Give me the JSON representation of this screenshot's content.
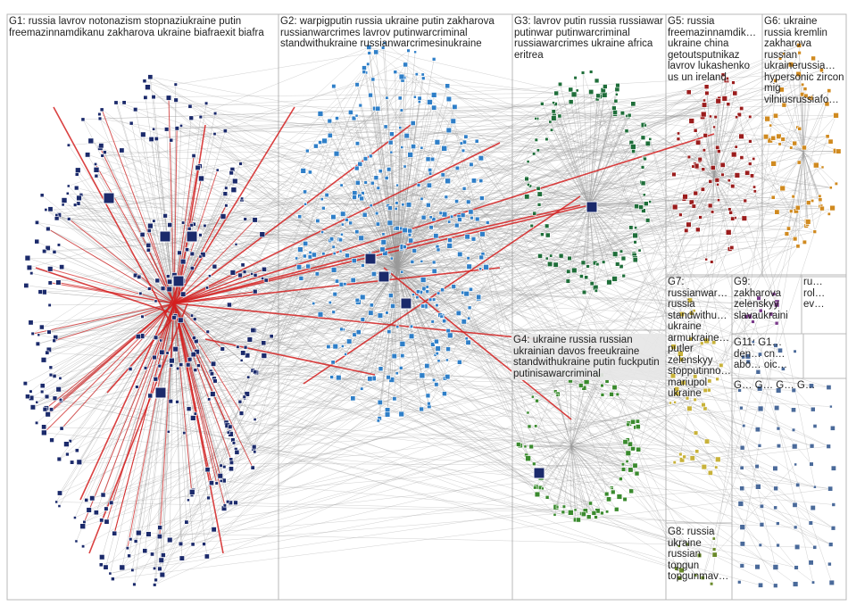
{
  "groups": [
    {
      "id": "G1",
      "label": "G1: russia lavrov notonazism stopnaziukraine putin freemazinnamdikanu zakharova ukraine biafraexit biafra",
      "color": "#1b2a6b"
    },
    {
      "id": "G2",
      "label": "G2: warpigputin russia ukraine putin zakharova russianwarcrimes lavrov putinwarcriminal standwithukraine russianwarcrimesinukraine",
      "color": "#2f7fc8"
    },
    {
      "id": "G3",
      "label": "G3: lavrov putin russia russiawar putinwar putinwarcriminal russiawarcrimes ukraine africa eritrea",
      "color": "#1f6e3a"
    },
    {
      "id": "G4",
      "label": "G4: ukraine russia russian ukrainian davos freeukraine standwithukraine putin fuckputin putinisawarcriminal",
      "color": "#3a8a2e"
    },
    {
      "id": "G5",
      "label": "G5: russia freemazinnamdik… ukraine china getoutsputnikaz lavrov lukashenko us un ireland",
      "color": "#9b1d1d"
    },
    {
      "id": "G6",
      "label": "G6: ukraine russia kremlin zakharova russian ukrainerussia… hypersonic zircon mig vilniusrussiafo…",
      "color": "#d08a20"
    },
    {
      "id": "G7",
      "label": "G7: russianwar… russia standwithu… ukraine armukraine… putler zelenskyy stopputinno… mariupol ukraine",
      "color": "#c8b23a"
    },
    {
      "id": "G8",
      "label": "G8: russia ukraine russian topgun topgunmav…",
      "color": "#6a8a2a"
    },
    {
      "id": "G9",
      "label": "G9: zakharova zelenskyy slavaukraini",
      "color": "#7a3a8a"
    },
    {
      "id": "G11",
      "label": "G11: G1… den… cn… abo… oic…",
      "color": "#4a6a9a"
    }
  ],
  "small_labels": [
    {
      "text": "ru… rol… ev…"
    },
    {
      "text": "G… G… G… G…"
    }
  ],
  "edge_colors": {
    "normal": "#9a9a9a",
    "highlight": "#d42020"
  },
  "background": "#ffffff"
}
